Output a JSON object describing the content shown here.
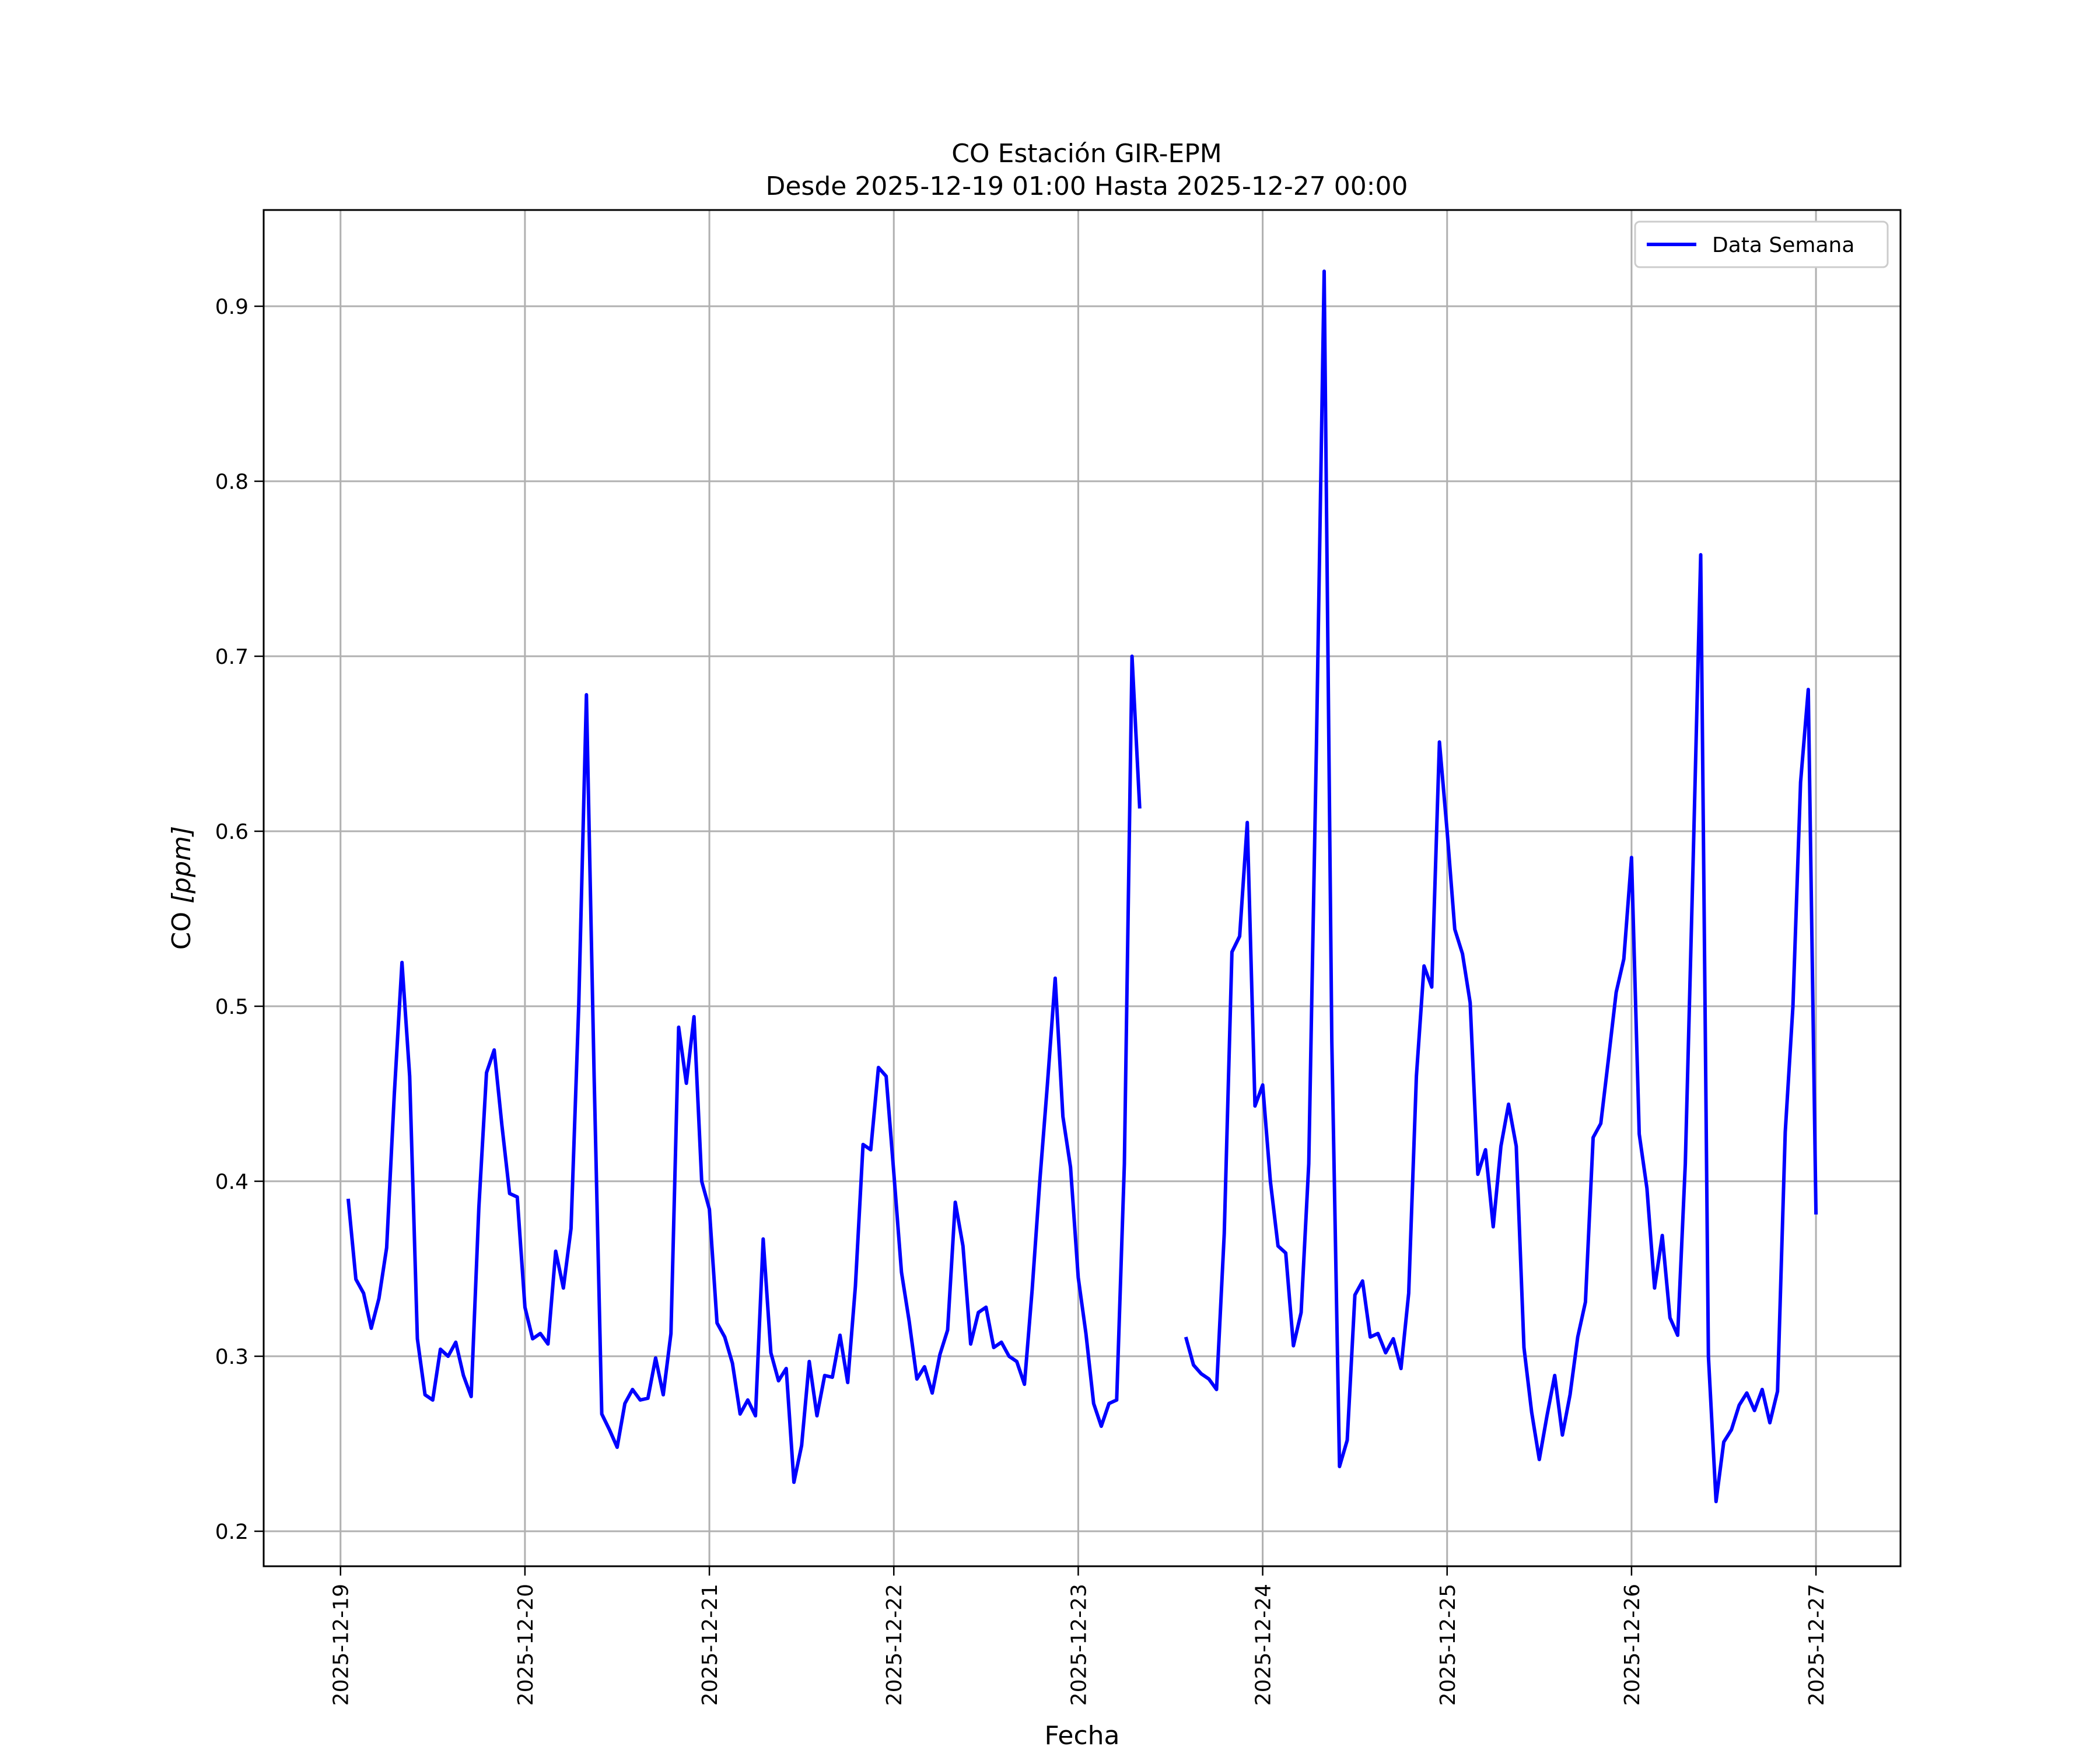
{
  "chart_data": {
    "type": "line",
    "title": "CO Estación GIR-EPM",
    "subtitle": "Desde 2025-12-19 01:00 Hasta 2025-12-27 00:00",
    "xlabel": "Fecha",
    "ylabel_main": "CO ",
    "ylabel_unit": "[ppm]",
    "xlim": [
      "2025-12-18 14:00",
      "2025-12-27 11:00"
    ],
    "ylim": [
      0.18,
      0.955
    ],
    "grid": true,
    "legend_position": "top-right",
    "x_ticks": [
      "2025-12-19",
      "2025-12-20",
      "2025-12-21",
      "2025-12-22",
      "2025-12-23",
      "2025-12-24",
      "2025-12-25",
      "2025-12-26",
      "2025-12-27"
    ],
    "y_ticks": [
      "0.2",
      "0.3",
      "0.4",
      "0.5",
      "0.6",
      "0.7",
      "0.8",
      "0.9"
    ],
    "series": [
      {
        "name": "Data Semana",
        "color": "#0000ff",
        "segments": [
          [
            [
              "2025-12-19 01:00",
              0.39
            ],
            [
              "2025-12-19 02:00",
              0.344
            ],
            [
              "2025-12-19 03:00",
              0.336
            ],
            [
              "2025-12-19 04:00",
              0.316
            ],
            [
              "2025-12-19 05:00",
              0.333
            ],
            [
              "2025-12-19 06:00",
              0.362
            ],
            [
              "2025-12-19 07:00",
              0.45
            ],
            [
              "2025-12-19 08:00",
              0.525
            ],
            [
              "2025-12-19 09:00",
              0.46
            ],
            [
              "2025-12-19 10:00",
              0.31
            ],
            [
              "2025-12-19 11:00",
              0.278
            ],
            [
              "2025-12-19 12:00",
              0.275
            ],
            [
              "2025-12-19 13:00",
              0.304
            ],
            [
              "2025-12-19 14:00",
              0.3
            ],
            [
              "2025-12-19 15:00",
              0.308
            ],
            [
              "2025-12-19 16:00",
              0.289
            ],
            [
              "2025-12-19 17:00",
              0.277
            ],
            [
              "2025-12-19 18:00",
              0.385
            ],
            [
              "2025-12-19 19:00",
              0.462
            ],
            [
              "2025-12-19 20:00",
              0.475
            ],
            [
              "2025-12-19 21:00",
              0.432
            ],
            [
              "2025-12-19 22:00",
              0.393
            ],
            [
              "2025-12-19 23:00",
              0.391
            ],
            [
              "2025-12-20 00:00",
              0.328
            ],
            [
              "2025-12-20 01:00",
              0.31
            ],
            [
              "2025-12-20 02:00",
              0.313
            ],
            [
              "2025-12-20 03:00",
              0.307
            ],
            [
              "2025-12-20 04:00",
              0.36
            ],
            [
              "2025-12-20 05:00",
              0.339
            ],
            [
              "2025-12-20 06:00",
              0.373
            ],
            [
              "2025-12-20 07:00",
              0.5
            ],
            [
              "2025-12-20 08:00",
              0.678
            ],
            [
              "2025-12-20 09:00",
              0.46
            ],
            [
              "2025-12-20 10:00",
              0.267
            ],
            [
              "2025-12-20 11:00",
              0.258
            ],
            [
              "2025-12-20 12:00",
              0.248
            ],
            [
              "2025-12-20 13:00",
              0.273
            ],
            [
              "2025-12-20 14:00",
              0.281
            ],
            [
              "2025-12-20 15:00",
              0.275
            ],
            [
              "2025-12-20 16:00",
              0.276
            ],
            [
              "2025-12-20 17:00",
              0.299
            ],
            [
              "2025-12-20 18:00",
              0.278
            ],
            [
              "2025-12-20 19:00",
              0.313
            ],
            [
              "2025-12-20 20:00",
              0.488
            ],
            [
              "2025-12-20 21:00",
              0.456
            ],
            [
              "2025-12-20 22:00",
              0.494
            ],
            [
              "2025-12-20 23:00",
              0.4
            ],
            [
              "2025-12-21 00:00",
              0.384
            ],
            [
              "2025-12-21 01:00",
              0.319
            ],
            [
              "2025-12-21 02:00",
              0.311
            ],
            [
              "2025-12-21 03:00",
              0.296
            ],
            [
              "2025-12-21 04:00",
              0.267
            ],
            [
              "2025-12-21 05:00",
              0.275
            ],
            [
              "2025-12-21 06:00",
              0.266
            ],
            [
              "2025-12-21 07:00",
              0.367
            ],
            [
              "2025-12-21 08:00",
              0.302
            ],
            [
              "2025-12-21 09:00",
              0.286
            ],
            [
              "2025-12-21 10:00",
              0.293
            ],
            [
              "2025-12-21 11:00",
              0.228
            ],
            [
              "2025-12-21 12:00",
              0.249
            ],
            [
              "2025-12-21 13:00",
              0.297
            ],
            [
              "2025-12-21 14:00",
              0.266
            ],
            [
              "2025-12-21 15:00",
              0.289
            ],
            [
              "2025-12-21 16:00",
              0.288
            ],
            [
              "2025-12-21 17:00",
              0.312
            ],
            [
              "2025-12-21 18:00",
              0.285
            ],
            [
              "2025-12-21 19:00",
              0.34
            ],
            [
              "2025-12-21 20:00",
              0.421
            ],
            [
              "2025-12-21 21:00",
              0.418
            ],
            [
              "2025-12-21 22:00",
              0.465
            ],
            [
              "2025-12-21 23:00",
              0.46
            ],
            [
              "2025-12-22 00:00",
              0.405
            ],
            [
              "2025-12-22 01:00",
              0.348
            ],
            [
              "2025-12-22 02:00",
              0.32
            ],
            [
              "2025-12-22 03:00",
              0.287
            ],
            [
              "2025-12-22 04:00",
              0.294
            ],
            [
              "2025-12-22 05:00",
              0.279
            ],
            [
              "2025-12-22 06:00",
              0.301
            ],
            [
              "2025-12-22 07:00",
              0.315
            ],
            [
              "2025-12-22 08:00",
              0.388
            ],
            [
              "2025-12-22 09:00",
              0.363
            ],
            [
              "2025-12-22 10:00",
              0.307
            ],
            [
              "2025-12-22 11:00",
              0.325
            ],
            [
              "2025-12-22 12:00",
              0.328
            ],
            [
              "2025-12-22 13:00",
              0.305
            ],
            [
              "2025-12-22 14:00",
              0.308
            ],
            [
              "2025-12-22 15:00",
              0.3
            ],
            [
              "2025-12-22 16:00",
              0.297
            ],
            [
              "2025-12-22 17:00",
              0.284
            ],
            [
              "2025-12-22 18:00",
              0.338
            ],
            [
              "2025-12-22 19:00",
              0.4
            ],
            [
              "2025-12-22 20:00",
              0.456
            ],
            [
              "2025-12-22 21:00",
              0.516
            ],
            [
              "2025-12-22 22:00",
              0.437
            ],
            [
              "2025-12-22 23:00",
              0.408
            ],
            [
              "2025-12-23 00:00",
              0.345
            ],
            [
              "2025-12-23 01:00",
              0.313
            ],
            [
              "2025-12-23 02:00",
              0.273
            ],
            [
              "2025-12-23 03:00",
              0.26
            ],
            [
              "2025-12-23 04:00",
              0.273
            ],
            [
              "2025-12-23 05:00",
              0.275
            ],
            [
              "2025-12-23 06:00",
              0.41
            ],
            [
              "2025-12-23 07:00",
              0.7
            ],
            [
              "2025-12-23 08:00",
              0.613
            ]
          ],
          [
            [
              "2025-12-23 14:00",
              0.311
            ],
            [
              "2025-12-23 15:00",
              0.295
            ],
            [
              "2025-12-23 16:00",
              0.29
            ],
            [
              "2025-12-23 17:00",
              0.287
            ],
            [
              "2025-12-23 18:00",
              0.281
            ],
            [
              "2025-12-23 19:00",
              0.37
            ],
            [
              "2025-12-23 20:00",
              0.531
            ],
            [
              "2025-12-23 21:00",
              0.54
            ],
            [
              "2025-12-23 22:00",
              0.605
            ],
            [
              "2025-12-23 23:00",
              0.443
            ],
            [
              "2025-12-24 00:00",
              0.455
            ],
            [
              "2025-12-24 01:00",
              0.4
            ],
            [
              "2025-12-24 02:00",
              0.363
            ],
            [
              "2025-12-24 03:00",
              0.359
            ],
            [
              "2025-12-24 04:00",
              0.306
            ],
            [
              "2025-12-24 05:00",
              0.325
            ],
            [
              "2025-12-24 06:00",
              0.41
            ],
            [
              "2025-12-24 07:00",
              0.65
            ],
            [
              "2025-12-24 08:00",
              0.92
            ],
            [
              "2025-12-24 09:00",
              0.48
            ],
            [
              "2025-12-24 10:00",
              0.237
            ],
            [
              "2025-12-24 11:00",
              0.252
            ],
            [
              "2025-12-24 12:00",
              0.335
            ],
            [
              "2025-12-24 13:00",
              0.343
            ],
            [
              "2025-12-24 14:00",
              0.311
            ],
            [
              "2025-12-24 15:00",
              0.313
            ],
            [
              "2025-12-24 16:00",
              0.302
            ],
            [
              "2025-12-24 17:00",
              0.31
            ],
            [
              "2025-12-24 18:00",
              0.293
            ],
            [
              "2025-12-24 19:00",
              0.336
            ],
            [
              "2025-12-24 20:00",
              0.46
            ],
            [
              "2025-12-24 21:00",
              0.523
            ],
            [
              "2025-12-24 22:00",
              0.511
            ],
            [
              "2025-12-24 23:00",
              0.651
            ],
            [
              "2025-12-25 00:00",
              0.6
            ],
            [
              "2025-12-25 01:00",
              0.544
            ],
            [
              "2025-12-25 02:00",
              0.53
            ],
            [
              "2025-12-25 03:00",
              0.502
            ],
            [
              "2025-12-25 04:00",
              0.404
            ],
            [
              "2025-12-25 05:00",
              0.418
            ],
            [
              "2025-12-25 06:00",
              0.374
            ],
            [
              "2025-12-25 07:00",
              0.42
            ],
            [
              "2025-12-25 08:00",
              0.444
            ],
            [
              "2025-12-25 09:00",
              0.42
            ],
            [
              "2025-12-25 10:00",
              0.305
            ],
            [
              "2025-12-25 11:00",
              0.268
            ],
            [
              "2025-12-25 12:00",
              0.241
            ],
            [
              "2025-12-25 13:00",
              0.266
            ],
            [
              "2025-12-25 14:00",
              0.289
            ],
            [
              "2025-12-25 15:00",
              0.255
            ],
            [
              "2025-12-25 16:00",
              0.278
            ],
            [
              "2025-12-25 17:00",
              0.311
            ],
            [
              "2025-12-25 18:00",
              0.331
            ],
            [
              "2025-12-25 19:00",
              0.425
            ],
            [
              "2025-12-25 20:00",
              0.433
            ],
            [
              "2025-12-25 21:00",
              0.47
            ],
            [
              "2025-12-25 22:00",
              0.508
            ],
            [
              "2025-12-25 23:00",
              0.527
            ],
            [
              "2025-12-26 00:00",
              0.585
            ],
            [
              "2025-12-26 01:00",
              0.427
            ],
            [
              "2025-12-26 02:00",
              0.396
            ],
            [
              "2025-12-26 03:00",
              0.339
            ],
            [
              "2025-12-26 04:00",
              0.369
            ],
            [
              "2025-12-26 05:00",
              0.322
            ],
            [
              "2025-12-26 06:00",
              0.312
            ],
            [
              "2025-12-26 07:00",
              0.41
            ],
            [
              "2025-12-26 08:00",
              0.58
            ],
            [
              "2025-12-26 09:00",
              0.758
            ],
            [
              "2025-12-26 10:00",
              0.3
            ],
            [
              "2025-12-26 11:00",
              0.217
            ],
            [
              "2025-12-26 12:00",
              0.251
            ],
            [
              "2025-12-26 13:00",
              0.258
            ],
            [
              "2025-12-26 14:00",
              0.272
            ],
            [
              "2025-12-26 15:00",
              0.279
            ],
            [
              "2025-12-26 16:00",
              0.269
            ],
            [
              "2025-12-26 17:00",
              0.281
            ],
            [
              "2025-12-26 18:00",
              0.262
            ],
            [
              "2025-12-26 19:00",
              0.28
            ],
            [
              "2025-12-26 20:00",
              0.428
            ],
            [
              "2025-12-26 21:00",
              0.5
            ],
            [
              "2025-12-26 22:00",
              0.628
            ],
            [
              "2025-12-26 23:00",
              0.681
            ],
            [
              "2025-12-27 00:00",
              0.381
            ]
          ]
        ]
      }
    ]
  }
}
